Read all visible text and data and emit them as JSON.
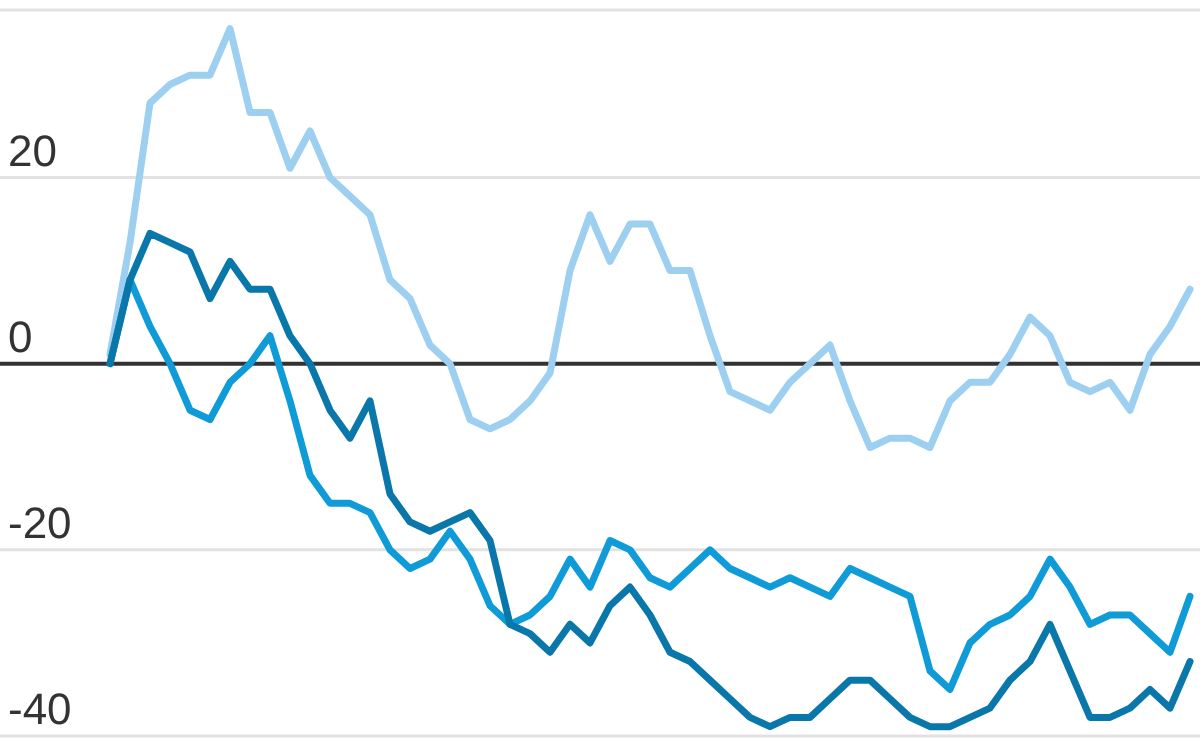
{
  "chart_data": {
    "type": "line",
    "categories": [
      null,
      null,
      null,
      null,
      null,
      null,
      null,
      null,
      null,
      null,
      null,
      null,
      null,
      null,
      null,
      null,
      null,
      null,
      null,
      null,
      null,
      null,
      null,
      null,
      null,
      null,
      null,
      null,
      null,
      null,
      null,
      null,
      null,
      null,
      null,
      null,
      null,
      null,
      null,
      null,
      null,
      null,
      null,
      null,
      null,
      null,
      null,
      null,
      null,
      null,
      null,
      null,
      null,
      null,
      null
    ],
    "series": [
      {
        "color": "#9dcff0",
        "values": [
          1,
          13,
          28,
          30,
          31,
          31,
          36,
          27,
          27,
          21,
          25,
          20,
          18,
          16,
          9,
          7,
          2,
          0,
          -6,
          -7,
          -6,
          -4,
          -1,
          10,
          16,
          11,
          15,
          15,
          10,
          10,
          3,
          -3,
          -4,
          -5,
          -2,
          0,
          2,
          -4,
          -9,
          -8,
          -8,
          -9,
          -4,
          -2,
          -2,
          1,
          5,
          3,
          -2,
          -3,
          -2,
          -5,
          1,
          4,
          8
        ]
      },
      {
        "color": "#0f9bd7",
        "values": [
          0,
          9,
          4,
          0,
          -5,
          -6,
          -2,
          0,
          3,
          -4,
          -12,
          -15,
          -15,
          -16,
          -20,
          -22,
          -21,
          -18,
          -21,
          -26,
          -28,
          -27,
          -25,
          -21,
          -24,
          -19,
          -20,
          -23,
          -24,
          -22,
          -20,
          -22,
          -23,
          -24,
          -23,
          -24,
          -25,
          -22,
          -23,
          -24,
          -25,
          -33,
          -35,
          -30,
          -28,
          -27,
          -25,
          -21,
          -24,
          -28,
          -27,
          -27,
          -29,
          -31,
          -25
        ]
      },
      {
        "color": "#0a77aa",
        "values": [
          0,
          9,
          14,
          13,
          12,
          7,
          11,
          8,
          8,
          3,
          0,
          -5,
          -8,
          -4,
          -14,
          -17,
          -18,
          -17,
          -16,
          -19,
          -28,
          -29,
          -31,
          -28,
          -30,
          -26,
          -24,
          -27,
          -31,
          -32,
          -34,
          -36,
          -38,
          -39,
          -38,
          -38,
          -36,
          -34,
          -34,
          -36,
          -38,
          -39,
          -39,
          -38,
          -37,
          -34,
          -32,
          -28,
          -33,
          -38,
          -38,
          -37,
          -35,
          -37,
          -32
        ]
      }
    ],
    "ylim": [
      -40,
      38
    ],
    "yticks": [
      -40,
      -20,
      0,
      20,
      {
        "value": 38,
        "label": null
      }
    ],
    "grid": "y",
    "tick_labels": "y",
    "line_style": "solid",
    "marker": "none",
    "ref_lines": [
      {
        "axis": "y",
        "value": 0,
        "color": "#333333"
      }
    ]
  }
}
